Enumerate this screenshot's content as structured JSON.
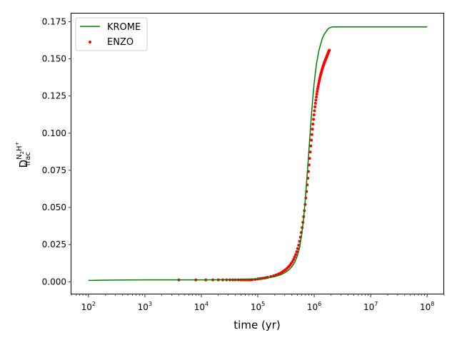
{
  "chart_data": {
    "type": "line",
    "xscale": "log",
    "xlabel": "time (yr)",
    "ylabel_main": "D",
    "ylabel_super": "N",
    "ylabel_sub2": "2",
    "ylabel_super2": "H",
    "ylabel_plus": "+",
    "ylabel_sub": "frac",
    "xlim": [
      50,
      200000000
    ],
    "ylim": [
      -0.0085,
      0.1805
    ],
    "x_ticks": [
      {
        "value": 100,
        "base": "10",
        "exp": "2"
      },
      {
        "value": 1000,
        "base": "10",
        "exp": "3"
      },
      {
        "value": 10000,
        "base": "10",
        "exp": "4"
      },
      {
        "value": 100000,
        "base": "10",
        "exp": "5"
      },
      {
        "value": 1000000,
        "base": "10",
        "exp": "6"
      },
      {
        "value": 10000000,
        "base": "10",
        "exp": "7"
      },
      {
        "value": 100000000,
        "base": "10",
        "exp": "8"
      }
    ],
    "y_ticks": [
      {
        "value": 0.0,
        "label": "0.000"
      },
      {
        "value": 0.025,
        "label": "0.025"
      },
      {
        "value": 0.05,
        "label": "0.050"
      },
      {
        "value": 0.075,
        "label": "0.075"
      },
      {
        "value": 0.1,
        "label": "0.100"
      },
      {
        "value": 0.125,
        "label": "0.125"
      },
      {
        "value": 0.15,
        "label": "0.150"
      },
      {
        "value": 0.175,
        "label": "0.175"
      }
    ],
    "grid": false,
    "legend_position": "top-left",
    "series": [
      {
        "name": "KROME",
        "kind": "line",
        "color": "#008000",
        "x": [
          100,
          200,
          500,
          1000,
          3000,
          10000,
          30000,
          100000,
          150000,
          200000,
          250000,
          300000,
          350000,
          400000,
          450000,
          500000,
          550000,
          600000,
          650000,
          700000,
          750000,
          800000,
          850000,
          900000,
          950000,
          1000000,
          1050000,
          1100000,
          1200000,
          1300000,
          1400000,
          1500000,
          1600000,
          1700000,
          1800000,
          1900000,
          2100000,
          2500000,
          3000000,
          5000000,
          10000000,
          100000000
        ],
        "y": [
          0.0009,
          0.0011,
          0.0012,
          0.0013,
          0.0013,
          0.0013,
          0.0014,
          0.0019,
          0.0026,
          0.0035,
          0.0046,
          0.006,
          0.0078,
          0.01,
          0.013,
          0.0173,
          0.023,
          0.032,
          0.043,
          0.057,
          0.072,
          0.087,
          0.101,
          0.114,
          0.125,
          0.134,
          0.141,
          0.147,
          0.155,
          0.16,
          0.164,
          0.1665,
          0.168,
          0.1695,
          0.1705,
          0.171,
          0.1715,
          0.1715,
          0.1715,
          0.1715,
          0.1715,
          0.1715
        ]
      },
      {
        "name": "ENZO",
        "kind": "scatter",
        "color": "#ff0000",
        "x": [
          4000,
          8000,
          12000,
          16000,
          20000,
          24000,
          28000,
          32000,
          36000,
          40000,
          45000,
          50000,
          55000,
          60000,
          65000,
          70000,
          75000,
          80000,
          90000,
          100000,
          110000,
          120000,
          130000,
          140000,
          150000,
          170000,
          190000,
          210000,
          230000,
          250000,
          270000,
          290000,
          310000,
          330000,
          350000,
          370000,
          390000,
          410000,
          430000,
          450000,
          470000,
          490000,
          510000,
          530000,
          550000,
          570000,
          590000,
          610000,
          630000,
          650000,
          670000,
          690000,
          710000,
          730000,
          750000,
          770000,
          790000,
          810000,
          830000,
          850000,
          870000,
          890000,
          910000,
          930000,
          950000,
          970000,
          990000,
          1010000,
          1030000,
          1050000,
          1070000,
          1090000,
          1110000,
          1130000,
          1150000,
          1170000,
          1190000,
          1210000,
          1230000,
          1250000,
          1270000,
          1290000,
          1310000,
          1330000,
          1350000,
          1370000,
          1390000,
          1410000,
          1430000,
          1450000,
          1470000,
          1490000,
          1510000,
          1530000,
          1550000,
          1570000,
          1590000,
          1610000,
          1630000,
          1650000,
          1670000,
          1690000,
          1710000,
          1730000,
          1750000,
          1770000,
          1790000,
          1810000,
          1830000,
          1850000
        ],
        "y": [
          0.0012,
          0.0012,
          0.0012,
          0.0013,
          0.0013,
          0.0013,
          0.0013,
          0.0013,
          0.0013,
          0.0013,
          0.0013,
          0.0013,
          0.0013,
          0.0013,
          0.0013,
          0.0013,
          0.0013,
          0.0014,
          0.0016,
          0.0019,
          0.0021,
          0.0023,
          0.0025,
          0.0027,
          0.003,
          0.0035,
          0.004,
          0.0046,
          0.0052,
          0.0058,
          0.0065,
          0.0073,
          0.0081,
          0.009,
          0.01,
          0.011,
          0.0122,
          0.0135,
          0.015,
          0.0166,
          0.0183,
          0.0202,
          0.0223,
          0.0246,
          0.0272,
          0.03,
          0.0331,
          0.0365,
          0.04,
          0.0438,
          0.0478,
          0.052,
          0.0563,
          0.0607,
          0.0652,
          0.0697,
          0.0742,
          0.0786,
          0.083,
          0.0873,
          0.0914,
          0.0953,
          0.0991,
          0.1027,
          0.1061,
          0.1093,
          0.1123,
          0.1151,
          0.1177,
          0.1201,
          0.1223,
          0.1244,
          0.1263,
          0.1281,
          0.1298,
          0.1313,
          0.1328,
          0.1341,
          0.1354,
          0.1366,
          0.1377,
          0.1388,
          0.1398,
          0.1407,
          0.1416,
          0.1425,
          0.1433,
          0.1441,
          0.1448,
          0.1455,
          0.1462,
          0.1468,
          0.1474,
          0.148,
          0.1486,
          0.1491,
          0.1496,
          0.1501,
          0.1506,
          0.1511,
          0.1516,
          0.1521,
          0.1526,
          0.1531,
          0.1536,
          0.1541,
          0.1546,
          0.155,
          0.1554,
          0.1558
        ]
      }
    ]
  }
}
